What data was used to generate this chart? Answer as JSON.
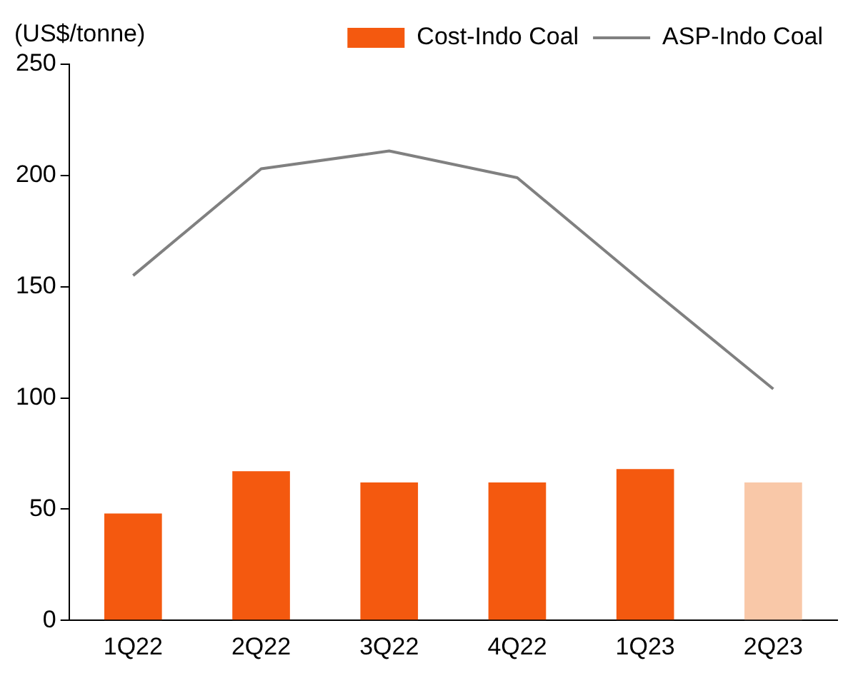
{
  "chart_data": {
    "type": "bar",
    "ylabel": "(US$/tonne)",
    "categories": [
      "1Q22",
      "2Q22",
      "3Q22",
      "4Q22",
      "1Q23",
      "2Q23"
    ],
    "series": [
      {
        "name": "Cost-Indo Coal",
        "color": "#f4590f",
        "colors": [
          "#f4590f",
          "#f4590f",
          "#f4590f",
          "#f4590f",
          "#f4590f",
          "#f9c8a8"
        ],
        "values": [
          48,
          67,
          62,
          62,
          68,
          62
        ]
      },
      {
        "name": "ASP-Indo Coal",
        "type": "line",
        "color": "#808080",
        "values": [
          155,
          203,
          211,
          199,
          151,
          104
        ]
      }
    ],
    "ylim": [
      0,
      250
    ],
    "yticks": [
      0,
      50,
      100,
      150,
      200,
      250
    ],
    "grid": false,
    "legend": "top",
    "marker": "none",
    "line_style": "solid"
  }
}
